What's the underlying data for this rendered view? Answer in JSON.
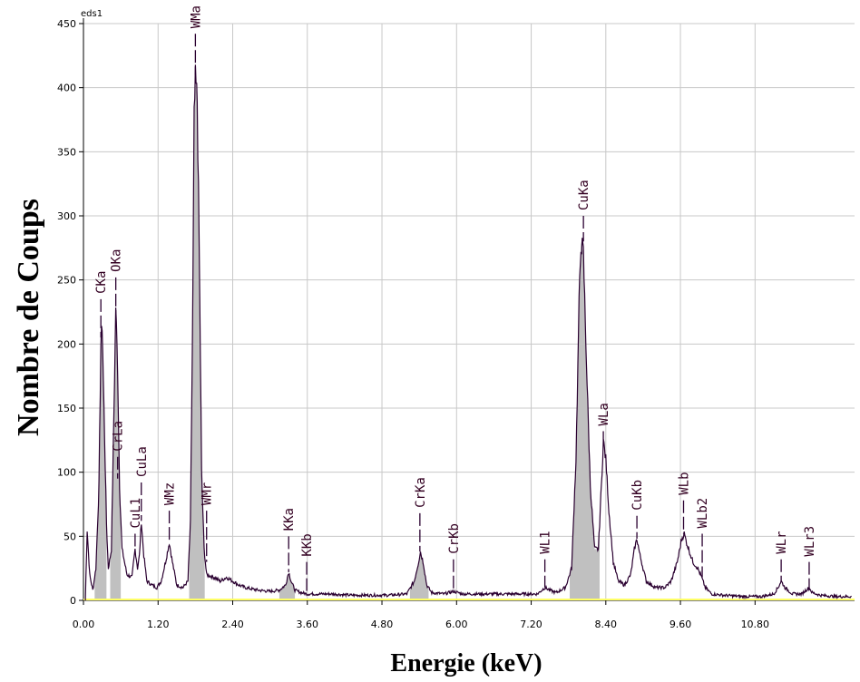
{
  "chart_data": {
    "type": "line",
    "tag": "eds1",
    "xlabel": "Energie (keV)",
    "ylabel": "Nombre  de Coups",
    "xlim": [
      0,
      12.4
    ],
    "ylim": [
      0,
      450
    ],
    "x_ticks": [
      0.0,
      1.2,
      2.4,
      3.6,
      4.8,
      6.0,
      7.2,
      8.4,
      9.6,
      10.8
    ],
    "x_tick_labels": [
      "0.00",
      "1.20",
      "2.40",
      "3.60",
      "4.80",
      "6.00",
      "7.20",
      "8.40",
      "9.60",
      "10.80"
    ],
    "y_ticks": [
      0,
      50,
      100,
      150,
      200,
      250,
      300,
      350,
      400,
      450
    ],
    "y_tick_labels": [
      "0",
      "50",
      "100",
      "150",
      "200",
      "250",
      "300",
      "350",
      "400",
      "450"
    ],
    "grid": true,
    "colors": {
      "trace": "#2a0030",
      "fill": "#c0c0c0",
      "grid": "#c8c8c8",
      "baseline": "#ffff66"
    },
    "series": [
      {
        "points": [
          [
            0.03,
            0
          ],
          [
            0.06,
            55
          ],
          [
            0.1,
            20
          ],
          [
            0.15,
            8
          ],
          [
            0.2,
            25
          ],
          [
            0.25,
            90
          ],
          [
            0.28,
            200
          ],
          [
            0.3,
            215
          ],
          [
            0.33,
            150
          ],
          [
            0.37,
            60
          ],
          [
            0.4,
            25
          ],
          [
            0.45,
            40
          ],
          [
            0.48,
            120
          ],
          [
            0.52,
            230
          ],
          [
            0.55,
            180
          ],
          [
            0.58,
            90
          ],
          [
            0.62,
            40
          ],
          [
            0.7,
            20
          ],
          [
            0.78,
            18
          ],
          [
            0.83,
            40
          ],
          [
            0.87,
            25
          ],
          [
            0.9,
            35
          ],
          [
            0.93,
            62
          ],
          [
            0.97,
            35
          ],
          [
            1.02,
            15
          ],
          [
            1.1,
            12
          ],
          [
            1.18,
            10
          ],
          [
            1.25,
            15
          ],
          [
            1.32,
            30
          ],
          [
            1.38,
            45
          ],
          [
            1.43,
            30
          ],
          [
            1.5,
            12
          ],
          [
            1.6,
            10
          ],
          [
            1.68,
            15
          ],
          [
            1.72,
            60
          ],
          [
            1.76,
            240
          ],
          [
            1.78,
            375
          ],
          [
            1.8,
            405
          ],
          [
            1.83,
            390
          ],
          [
            1.86,
            280
          ],
          [
            1.9,
            100
          ],
          [
            1.94,
            40
          ],
          [
            1.98,
            20
          ],
          [
            2.1,
            18
          ],
          [
            2.2,
            15
          ],
          [
            2.3,
            18
          ],
          [
            2.4,
            15
          ],
          [
            2.5,
            12
          ],
          [
            2.6,
            10
          ],
          [
            2.8,
            8
          ],
          [
            3.0,
            7
          ],
          [
            3.15,
            8
          ],
          [
            3.25,
            12
          ],
          [
            3.3,
            22
          ],
          [
            3.34,
            15
          ],
          [
            3.4,
            8
          ],
          [
            3.5,
            6
          ],
          [
            3.6,
            5
          ],
          [
            3.8,
            5
          ],
          [
            4.0,
            5
          ],
          [
            4.3,
            4
          ],
          [
            4.6,
            4
          ],
          [
            4.9,
            4
          ],
          [
            5.2,
            5
          ],
          [
            5.32,
            15
          ],
          [
            5.38,
            28
          ],
          [
            5.42,
            38
          ],
          [
            5.47,
            28
          ],
          [
            5.52,
            12
          ],
          [
            5.6,
            6
          ],
          [
            5.8,
            5
          ],
          [
            5.95,
            7
          ],
          [
            6.1,
            5
          ],
          [
            6.4,
            5
          ],
          [
            6.7,
            5
          ],
          [
            7.0,
            5
          ],
          [
            7.3,
            5
          ],
          [
            7.42,
            10
          ],
          [
            7.5,
            8
          ],
          [
            7.6,
            6
          ],
          [
            7.75,
            10
          ],
          [
            7.85,
            25
          ],
          [
            7.92,
            110
          ],
          [
            7.97,
            230
          ],
          [
            8.0,
            280
          ],
          [
            8.04,
            270
          ],
          [
            8.08,
            200
          ],
          [
            8.15,
            90
          ],
          [
            8.22,
            40
          ],
          [
            8.28,
            40
          ],
          [
            8.33,
            90
          ],
          [
            8.36,
            125
          ],
          [
            8.4,
            110
          ],
          [
            8.45,
            70
          ],
          [
            8.52,
            30
          ],
          [
            8.6,
            15
          ],
          [
            8.7,
            12
          ],
          [
            8.8,
            20
          ],
          [
            8.86,
            40
          ],
          [
            8.9,
            48
          ],
          [
            8.95,
            35
          ],
          [
            9.05,
            15
          ],
          [
            9.2,
            10
          ],
          [
            9.35,
            10
          ],
          [
            9.45,
            15
          ],
          [
            9.55,
            30
          ],
          [
            9.62,
            48
          ],
          [
            9.66,
            52
          ],
          [
            9.7,
            45
          ],
          [
            9.8,
            30
          ],
          [
            9.88,
            25
          ],
          [
            9.94,
            18
          ],
          [
            10.0,
            10
          ],
          [
            10.1,
            5
          ],
          [
            10.3,
            4
          ],
          [
            10.6,
            3
          ],
          [
            10.9,
            3
          ],
          [
            11.1,
            5
          ],
          [
            11.17,
            10
          ],
          [
            11.22,
            15
          ],
          [
            11.28,
            10
          ],
          [
            11.4,
            5
          ],
          [
            11.55,
            5
          ],
          [
            11.62,
            8
          ],
          [
            11.67,
            10
          ],
          [
            11.72,
            6
          ],
          [
            11.85,
            4
          ],
          [
            12.1,
            3
          ],
          [
            12.35,
            3
          ]
        ]
      }
    ],
    "peaks": [
      {
        "label": "CKa",
        "x": 0.28,
        "top": 235,
        "bottom": 205
      },
      {
        "label": "OKa",
        "x": 0.52,
        "top": 252,
        "bottom": 215
      },
      {
        "label": "CrLa",
        "x": 0.55,
        "top": 112,
        "bottom": 95
      },
      {
        "label": "CuL1",
        "x": 0.83,
        "top": 52,
        "bottom": 40
      },
      {
        "label": "CuLa",
        "x": 0.93,
        "top": 92,
        "bottom": 62
      },
      {
        "label": "WMz",
        "x": 1.38,
        "top": 70,
        "bottom": 45
      },
      {
        "label": "WMa",
        "x": 1.8,
        "top": 442,
        "bottom": 410
      },
      {
        "label": "WMr",
        "x": 1.98,
        "top": 70,
        "bottom": 30
      },
      {
        "label": "KKa",
        "x": 3.3,
        "top": 50,
        "bottom": 22
      },
      {
        "label": "KKb",
        "x": 3.59,
        "top": 30,
        "bottom": 5
      },
      {
        "label": "CrKa",
        "x": 5.41,
        "top": 68,
        "bottom": 38
      },
      {
        "label": "CrKb",
        "x": 5.95,
        "top": 32,
        "bottom": 7
      },
      {
        "label": "WL1",
        "x": 7.42,
        "top": 32,
        "bottom": 10
      },
      {
        "label": "CuKa",
        "x": 8.04,
        "top": 300,
        "bottom": 280
      },
      {
        "label": "WLa",
        "x": 8.36,
        "top": 132,
        "bottom": 125
      },
      {
        "label": "CuKb",
        "x": 8.9,
        "top": 66,
        "bottom": 48
      },
      {
        "label": "WLb",
        "x": 9.65,
        "top": 78,
        "bottom": 52
      },
      {
        "label": "WLb2",
        "x": 9.95,
        "top": 52,
        "bottom": 18
      },
      {
        "label": "WLr",
        "x": 11.22,
        "top": 32,
        "bottom": 15
      },
      {
        "label": "WLr3",
        "x": 11.67,
        "top": 30,
        "bottom": 10
      }
    ],
    "filled_regions": [
      [
        0.18,
        0.37
      ],
      [
        0.43,
        0.6
      ],
      [
        1.7,
        1.95
      ],
      [
        3.15,
        3.4
      ],
      [
        5.25,
        5.55
      ],
      [
        7.82,
        8.3
      ]
    ]
  }
}
